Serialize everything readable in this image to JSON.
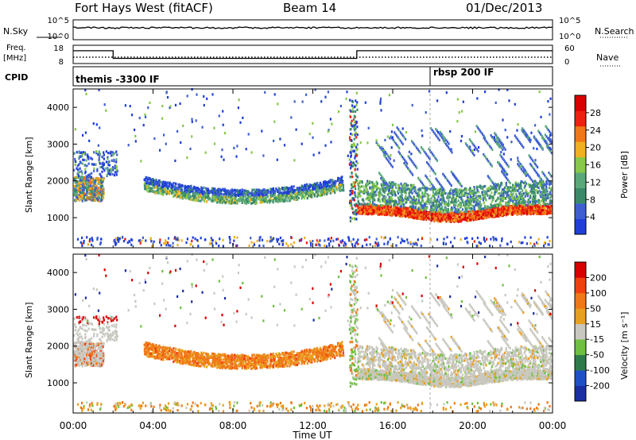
{
  "header": {
    "station": "Fort Hays West (fitACF)",
    "beam": "Beam 14",
    "date": "01/Dec/2013"
  },
  "colors": {
    "power_scale": [
      "#1f3fd8",
      "#3f5fd0",
      "#3a8a6a",
      "#5aa87a",
      "#88c84a",
      "#f0b020",
      "#f07818",
      "#ee2010",
      "#d80000"
    ],
    "velocity_scale": [
      "#1a2fa0",
      "#2050c8",
      "#2f7a4a",
      "#6fc040",
      "#c8c8c0",
      "#e8a020",
      "#f07818",
      "#f04010",
      "#d80000"
    ],
    "gray_scatter": "#c8c8c0"
  },
  "chart_data": [
    {
      "type": "line",
      "name": "noise",
      "left_label": "N.Sky",
      "right_label": "N.Search",
      "left_ticks": [
        "10^5",
        "10^0"
      ],
      "right_ticks": [
        "10^5",
        "10^0"
      ],
      "xlim": [
        "00:00",
        "00:00"
      ]
    },
    {
      "type": "line",
      "name": "frequency-nave",
      "left_label": "Freq.",
      "left_units": "[MHz]",
      "right_label": "Nave",
      "left_ticks": [
        "18",
        "8"
      ],
      "right_ticks": [
        "60",
        "0"
      ],
      "freq": {
        "x": [
          0,
          2.0,
          2.0,
          14.2,
          14.2,
          24
        ],
        "y": [
          17.5,
          17.5,
          11.8,
          11.8,
          17.5,
          17.5
        ]
      }
    },
    {
      "type": "table",
      "name": "cpid",
      "label": "CPID",
      "entries": [
        {
          "text": "themis -3300 IF",
          "start_hour": 0
        },
        {
          "text": "rbsp 200 IF",
          "start_hour": 18.0
        }
      ]
    },
    {
      "type": "heatmap",
      "name": "power",
      "ylabel": "Slant Range [km]",
      "yticks": [
        "4000",
        "3000",
        "2000",
        "1000"
      ],
      "ylim": [
        180,
        4500
      ],
      "colorbar_label": "Power [dB]",
      "colorbar_ticks": [
        "28",
        "24",
        "20",
        "16",
        "12",
        "8",
        "4"
      ]
    },
    {
      "type": "heatmap",
      "name": "velocity",
      "ylabel": "Slant Range [km]",
      "yticks": [
        "4000",
        "3000",
        "2000",
        "1000"
      ],
      "ylim": [
        180,
        4500
      ],
      "colorbar_label": "Velocity [m s⁻¹]",
      "colorbar_ticks": [
        "200",
        "100",
        "50",
        "15",
        "-15",
        "-50",
        "-100",
        "-200"
      ]
    }
  ],
  "time_axis": {
    "ticks": [
      "00:00",
      "04:00",
      "08:00",
      "12:00",
      "16:00",
      "20:00",
      "00:00"
    ],
    "label": "Time UT"
  }
}
